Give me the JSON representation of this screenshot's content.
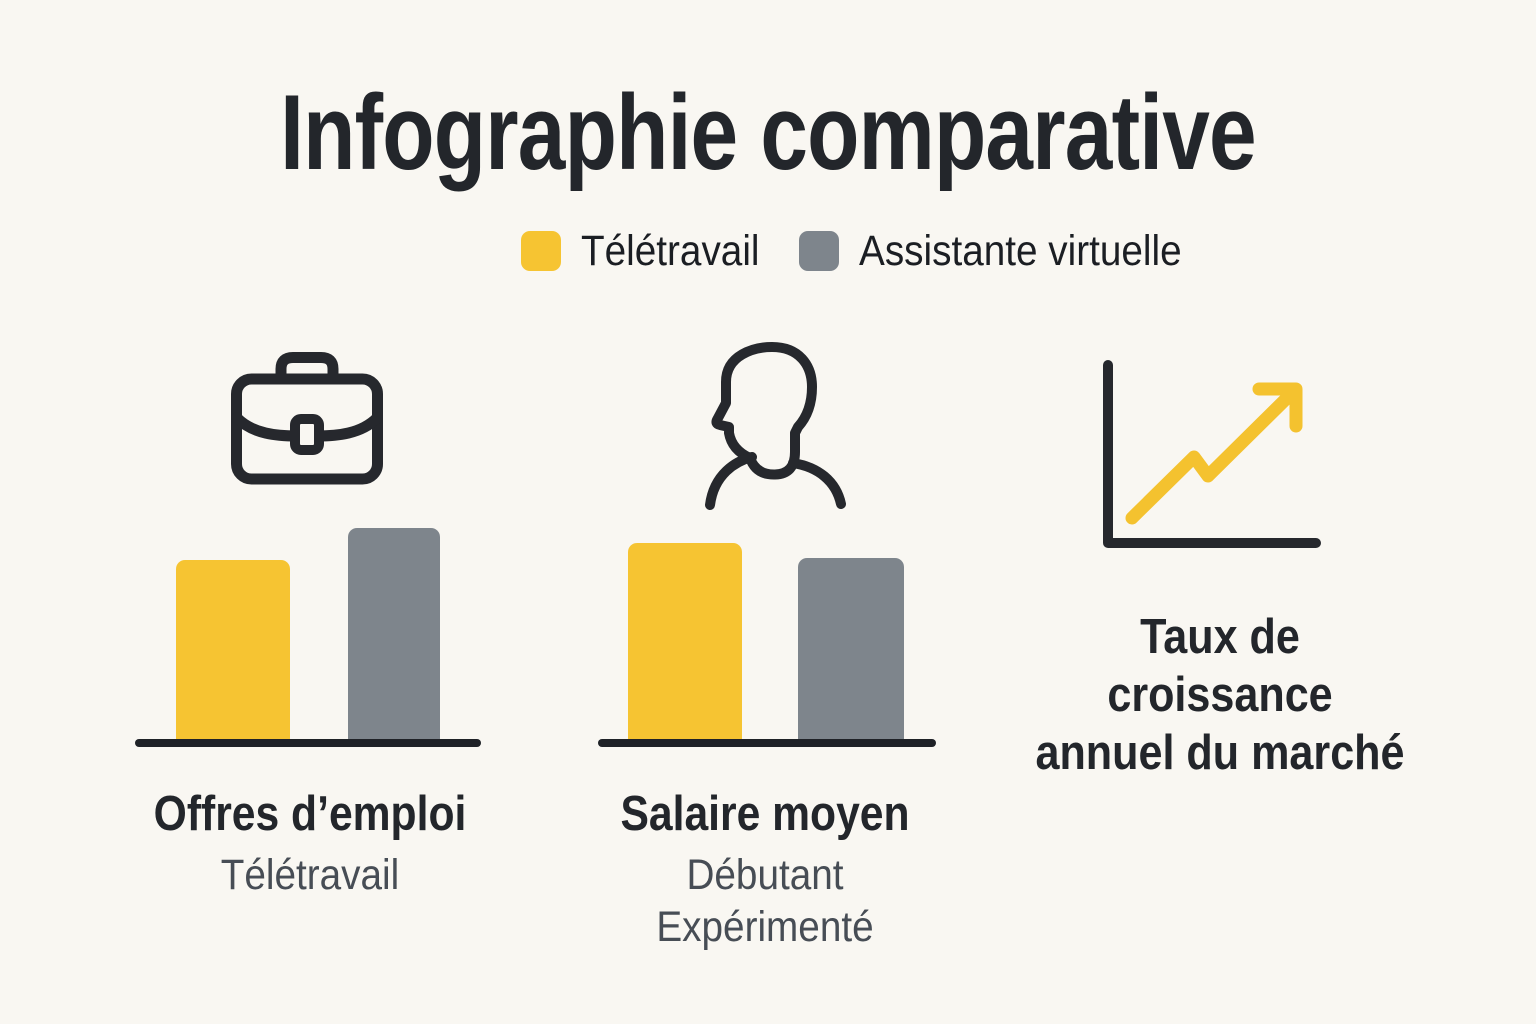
{
  "title": "Infographie comparative",
  "legend": {
    "items": [
      {
        "label": "Télétravail",
        "color": "#F6C432"
      },
      {
        "label": "Assistante virtuelle",
        "color": "#7E858C"
      }
    ]
  },
  "sections": [
    {
      "icon": "briefcase-icon",
      "title": "Offres d’emploi",
      "caption_lines": [
        "Télétravail"
      ]
    },
    {
      "icon": "person-icon",
      "title": "Salaire moyen",
      "caption_lines": [
        "Débutant",
        "Expérimenté"
      ]
    },
    {
      "icon": "growth-chart-icon",
      "title": "Taux de croissance annuel du marché",
      "caption_lines": [
        "Taux de",
        "croissance",
        "annuel du marché"
      ]
    }
  ],
  "chart_data": [
    {
      "type": "bar",
      "title": "Offres d’emploi",
      "subtitle": "Télétravail",
      "categories": [
        "Télétravail",
        "Assistante virtuelle"
      ],
      "series": [
        {
          "name": "Télétravail",
          "color": "#F6C432",
          "value_relative": 85
        },
        {
          "name": "Assistante virtuelle",
          "color": "#7E858C",
          "value_relative": 100
        }
      ],
      "ylabel": "",
      "xlabel": "",
      "axis_values_shown": false,
      "note": "hauteurs relatives, aucune valeur chiffrée affichée"
    },
    {
      "type": "bar",
      "title": "Salaire moyen",
      "subtitle": "Débutant / Expérimenté",
      "categories": [
        "Débutant",
        "Expérimenté"
      ],
      "series": [
        {
          "name": "Télétravail",
          "color": "#F6C432",
          "value_relative": 93
        },
        {
          "name": "Assistante virtuelle",
          "color": "#7E858C",
          "value_relative": 86
        }
      ],
      "ylabel": "",
      "xlabel": "",
      "axis_values_shown": false,
      "note": "hauteurs relatives, aucune valeur chiffrée affichée"
    },
    {
      "type": "line",
      "title": "Taux de croissance annuel du marché",
      "note": "pictogramme de courbe ascendante avec flèche, aucune donnée chiffrée"
    }
  ],
  "colors": {
    "background": "#F9F7F2",
    "text_dark": "#23262B",
    "text_muted": "#474D55",
    "yellow": "#F6C432",
    "gray": "#7E858C",
    "icon_stroke": "#26282D",
    "baseline": "#1F2227"
  }
}
